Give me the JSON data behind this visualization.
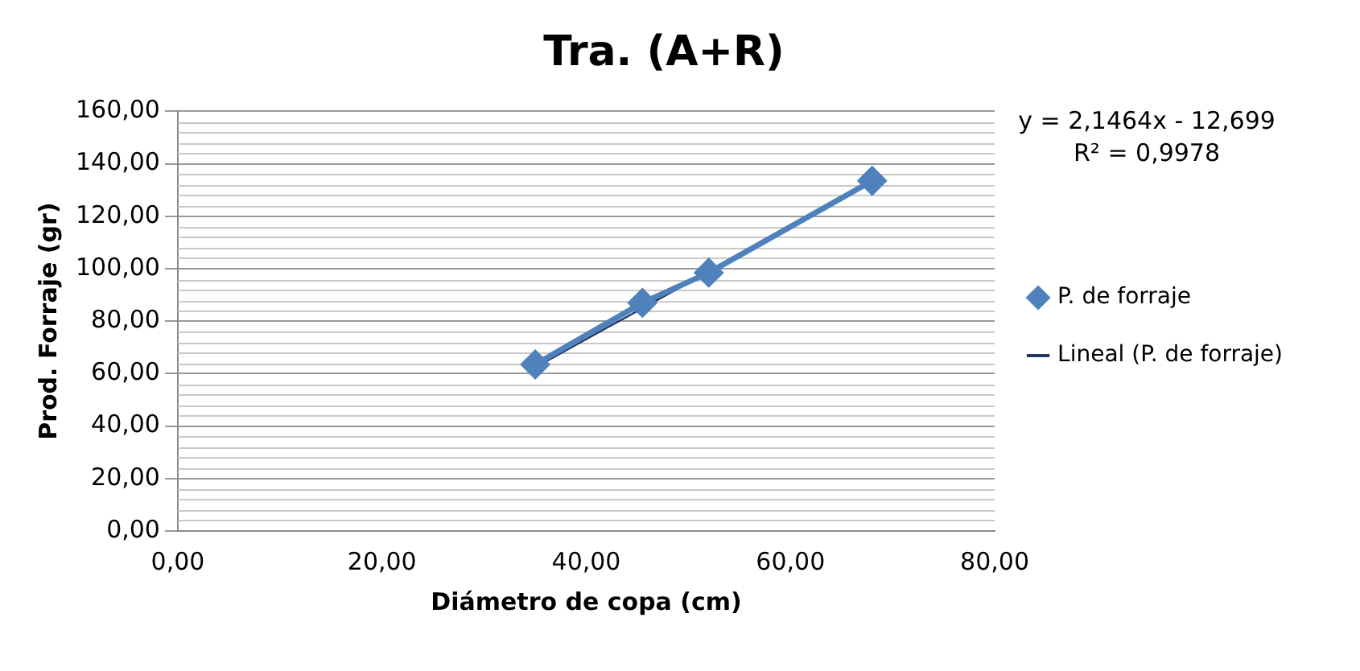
{
  "chart_data": {
    "type": "scatter",
    "title": "Tra. (A+R)",
    "xlabel": "Diámetro de copa (cm)",
    "ylabel": "Prod. Forraje (gr)",
    "annotations": [
      "y = 2,1464x - 12,699",
      "R² = 0,9978"
    ],
    "series": [
      {
        "name": "P. de forraje",
        "type": "line",
        "color": "#4f81bd",
        "marker": "diamond",
        "x": [
          35,
          45.5,
          52,
          68
        ],
        "values": [
          63.5,
          87,
          98.5,
          133.5
        ]
      },
      {
        "name": "Lineal (P. de forraje)",
        "type": "line",
        "color": "#1f3864",
        "marker": "none",
        "x": [
          35,
          68
        ],
        "values": [
          62.4,
          133.3
        ]
      }
    ],
    "xlim": [
      0,
      80
    ],
    "xticks": [
      {
        "value": 0,
        "label": "0,00"
      },
      {
        "value": 20,
        "label": "20,00"
      },
      {
        "value": 40,
        "label": "40,00"
      },
      {
        "value": 60,
        "label": "60,00"
      },
      {
        "value": 80,
        "label": "80,00"
      }
    ],
    "ylim": [
      0,
      160
    ],
    "yticks": [
      {
        "value": 0,
        "label": "0,00"
      },
      {
        "value": 20,
        "label": "20,00"
      },
      {
        "value": 40,
        "label": "40,00"
      },
      {
        "value": 60,
        "label": "60,00"
      },
      {
        "value": 80,
        "label": "80,00"
      },
      {
        "value": 100,
        "label": "100,00"
      },
      {
        "value": 120,
        "label": "120,00"
      },
      {
        "value": 140,
        "label": "140,00"
      },
      {
        "value": 160,
        "label": "160,00"
      }
    ],
    "grid": "y",
    "legend": "right"
  }
}
